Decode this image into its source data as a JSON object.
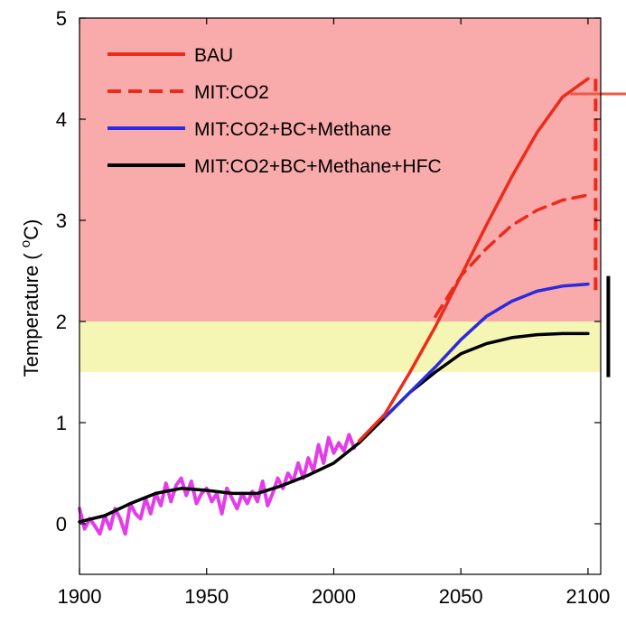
{
  "chart_data": {
    "type": "line",
    "title": "",
    "xlabel": "",
    "ylabel": "Temperature ( °C)",
    "ylabel_parts": {
      "prefix": "Temperature ( ",
      "superscript": "o",
      "suffix": "C)"
    },
    "xlim": [
      1900,
      2105
    ],
    "ylim": [
      -0.5,
      5
    ],
    "xticks": [
      1900,
      1950,
      2000,
      2050,
      2100
    ],
    "yticks": [
      0,
      1,
      2,
      3,
      4,
      5
    ],
    "grid": false,
    "legend_position": "top-left",
    "bands": [
      {
        "y0": 2.0,
        "y1": 5.0,
        "color": "#f9aaaa"
      },
      {
        "y0": 1.5,
        "y1": 2.0,
        "color": "#f6f6b4"
      }
    ],
    "series": [
      {
        "name": "BAU",
        "color": "#ee2a1a",
        "style": "solid",
        "x": [
          2010,
          2020,
          2030,
          2040,
          2050,
          2060,
          2070,
          2080,
          2090,
          2100
        ],
        "y": [
          0.82,
          1.08,
          1.5,
          1.95,
          2.45,
          2.95,
          3.43,
          3.87,
          4.22,
          4.4
        ]
      },
      {
        "name": "MIT:CO2",
        "color": "#ee2a1a",
        "style": "dashed",
        "x": [
          2040,
          2050,
          2060,
          2070,
          2080,
          2090,
          2100
        ],
        "y": [
          2.05,
          2.45,
          2.72,
          2.95,
          3.1,
          3.2,
          3.25
        ]
      },
      {
        "name": "MIT:CO2+BC+Methane",
        "color": "#2b2bdd",
        "style": "solid",
        "x": [
          2020,
          2030,
          2040,
          2050,
          2060,
          2070,
          2080,
          2090,
          2100
        ],
        "y": [
          1.05,
          1.3,
          1.55,
          1.82,
          2.05,
          2.2,
          2.3,
          2.35,
          2.37
        ]
      },
      {
        "name": "MIT:CO2+BC+Methane+HFC",
        "color": "#000000",
        "style": "solid",
        "x": [
          1900,
          1910,
          1920,
          1930,
          1940,
          1950,
          1960,
          1970,
          1980,
          1990,
          2000,
          2010,
          2020,
          2030,
          2040,
          2050,
          2060,
          2070,
          2080,
          2090,
          2100
        ],
        "y": [
          0.02,
          0.08,
          0.2,
          0.3,
          0.35,
          0.33,
          0.3,
          0.3,
          0.38,
          0.48,
          0.6,
          0.8,
          1.05,
          1.3,
          1.5,
          1.68,
          1.78,
          1.84,
          1.87,
          1.88,
          1.88
        ]
      },
      {
        "color": "#e23de8",
        "style": "solid",
        "x": [
          1900,
          1902,
          1904,
          1906,
          1908,
          1910,
          1912,
          1914,
          1916,
          1918,
          1920,
          1922,
          1924,
          1926,
          1928,
          1930,
          1932,
          1934,
          1936,
          1938,
          1940,
          1942,
          1944,
          1946,
          1948,
          1950,
          1952,
          1954,
          1956,
          1958,
          1960,
          1962,
          1964,
          1966,
          1968,
          1970,
          1972,
          1974,
          1976,
          1978,
          1980,
          1982,
          1984,
          1986,
          1988,
          1990,
          1992,
          1994,
          1996,
          1998,
          2000,
          2002,
          2004,
          2006,
          2008
        ],
        "y": [
          0.15,
          -0.05,
          0.05,
          -0.02,
          -0.1,
          0.08,
          -0.05,
          0.15,
          0.05,
          -0.1,
          0.2,
          0.1,
          0.05,
          0.25,
          0.1,
          0.3,
          0.18,
          0.4,
          0.22,
          0.38,
          0.45,
          0.28,
          0.42,
          0.2,
          0.3,
          0.35,
          0.22,
          0.3,
          0.1,
          0.35,
          0.25,
          0.15,
          0.3,
          0.2,
          0.32,
          0.22,
          0.42,
          0.18,
          0.3,
          0.45,
          0.35,
          0.5,
          0.42,
          0.6,
          0.45,
          0.65,
          0.52,
          0.78,
          0.6,
          0.85,
          0.7,
          0.8,
          0.72,
          0.88,
          0.75
        ]
      }
    ],
    "end_bars": [
      {
        "x": 2103,
        "y0": 2.3,
        "y1": 4.4,
        "color": "#ee2a1a",
        "style": "dashed"
      },
      {
        "x": 2108,
        "y0": 1.45,
        "y1": 2.45,
        "color": "#000000",
        "style": "solid"
      }
    ],
    "arrow": {
      "x0": 2093,
      "x1": 2124,
      "y": 4.25,
      "color": "#ee5a45"
    }
  }
}
